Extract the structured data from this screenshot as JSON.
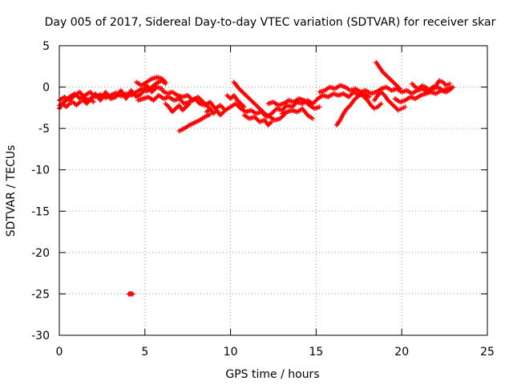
{
  "chart_data": {
    "type": "scatter",
    "title": "Day 005 of 2017, Sidereal Day-to-day VTEC variation (SDTVAR) for receiver skar",
    "xlabel": "GPS time / hours",
    "ylabel": "SDTVAR / TECUs",
    "xlim": [
      0,
      25
    ],
    "ylim": [
      -30,
      5
    ],
    "xticks": [
      0,
      5,
      10,
      15,
      20,
      25
    ],
    "yticks": [
      5,
      0,
      -5,
      -10,
      -15,
      -20,
      -25,
      -30
    ],
    "grid": true,
    "marker": "+",
    "color": "#ff0000",
    "series": [
      {
        "name": "SDTVAR",
        "segments": [
          [
            [
              0.0,
              -2.2
            ],
            [
              0.3,
              -1.8
            ],
            [
              0.6,
              -1.2
            ],
            [
              0.9,
              -0.8
            ],
            [
              1.2,
              -1.4
            ],
            [
              1.5,
              -1.0
            ],
            [
              1.8,
              -0.6
            ],
            [
              2.1,
              -1.2
            ],
            [
              2.4,
              -0.9
            ],
            [
              2.7,
              -1.3
            ],
            [
              3.0,
              -1.0
            ],
            [
              3.3,
              -0.7
            ],
            [
              3.6,
              -1.1
            ],
            [
              3.9,
              -0.8
            ],
            [
              4.2,
              -1.0
            ],
            [
              4.5,
              -0.6
            ],
            [
              4.8,
              -0.2
            ],
            [
              5.1,
              -0.5
            ],
            [
              5.4,
              0.0
            ],
            [
              5.7,
              0.5
            ],
            [
              6.0,
              0.8
            ],
            [
              6.2,
              0.4
            ]
          ],
          [
            [
              0.0,
              -1.6
            ],
            [
              0.3,
              -1.2
            ],
            [
              0.6,
              -1.6
            ],
            [
              0.9,
              -1.0
            ],
            [
              1.2,
              -0.6
            ],
            [
              1.5,
              -1.4
            ],
            [
              1.8,
              -1.6
            ],
            [
              2.1,
              -0.8
            ],
            [
              2.4,
              -1.6
            ],
            [
              2.7,
              -0.6
            ],
            [
              3.0,
              -1.4
            ],
            [
              3.3,
              -1.2
            ],
            [
              3.6,
              -0.4
            ],
            [
              3.9,
              -1.4
            ],
            [
              4.2,
              -0.4
            ],
            [
              4.5,
              -1.2
            ],
            [
              4.8,
              -0.8
            ],
            [
              5.1,
              0.2
            ],
            [
              5.4,
              -0.6
            ],
            [
              5.7,
              0.0
            ],
            [
              6.0,
              -0.2
            ]
          ],
          [
            [
              0.0,
              -2.6
            ],
            [
              0.2,
              -2.0
            ],
            [
              0.4,
              -2.4
            ],
            [
              0.6,
              -2.0
            ],
            [
              0.8,
              -1.8
            ],
            [
              1.0,
              -2.2
            ],
            [
              1.2,
              -1.8
            ],
            [
              1.4,
              -1.6
            ],
            [
              1.6,
              -2.0
            ],
            [
              1.8,
              -1.4
            ],
            [
              2.0,
              -1.8
            ]
          ],
          [
            [
              4.5,
              0.6
            ],
            [
              4.8,
              0.2
            ],
            [
              5.1,
              0.6
            ],
            [
              5.4,
              1.0
            ],
            [
              5.7,
              1.2
            ],
            [
              6.0,
              1.0
            ],
            [
              6.2,
              0.6
            ]
          ],
          [
            [
              4.6,
              -1.6
            ],
            [
              4.9,
              -1.4
            ],
            [
              5.2,
              -1.2
            ],
            [
              5.5,
              -1.6
            ],
            [
              5.8,
              -1.0
            ],
            [
              6.1,
              -1.4
            ],
            [
              6.4,
              -1.2
            ],
            [
              6.7,
              -1.6
            ],
            [
              7.0,
              -1.4
            ],
            [
              7.3,
              -2.0
            ],
            [
              7.6,
              -1.8
            ],
            [
              7.9,
              -1.4
            ],
            [
              8.2,
              -2.0
            ],
            [
              8.5,
              -2.2
            ],
            [
              8.8,
              -1.8
            ],
            [
              9.1,
              -2.6
            ],
            [
              9.4,
              -2.2
            ],
            [
              9.7,
              -2.8
            ],
            [
              10.0,
              -2.4
            ],
            [
              10.3,
              -2.0
            ],
            [
              10.6,
              -2.6
            ],
            [
              10.9,
              -3.0
            ],
            [
              11.2,
              -2.8
            ],
            [
              11.5,
              -3.2
            ],
            [
              11.8,
              -3.0
            ],
            [
              12.1,
              -3.6
            ],
            [
              12.4,
              -3.2
            ],
            [
              12.7,
              -2.6
            ],
            [
              13.0,
              -2.8
            ],
            [
              13.3,
              -2.2
            ],
            [
              13.6,
              -2.4
            ],
            [
              13.9,
              -1.8
            ],
            [
              14.2,
              -2.0
            ],
            [
              14.5,
              -1.6
            ],
            [
              14.8,
              -2.0
            ],
            [
              15.1,
              -1.4
            ],
            [
              15.4,
              -1.0
            ],
            [
              15.7,
              -1.2
            ],
            [
              16.0,
              -0.8
            ],
            [
              16.3,
              -1.0
            ],
            [
              16.6,
              -0.8
            ],
            [
              16.9,
              -1.2
            ],
            [
              17.2,
              -0.6
            ],
            [
              17.5,
              -1.0
            ],
            [
              17.8,
              -0.8
            ],
            [
              18.1,
              -1.2
            ]
          ],
          [
            [
              6.0,
              -0.4
            ],
            [
              6.3,
              -0.8
            ],
            [
              6.6,
              -0.6
            ],
            [
              6.9,
              -1.0
            ],
            [
              7.2,
              -1.2
            ],
            [
              7.5,
              -1.0
            ],
            [
              7.8,
              -1.6
            ],
            [
              8.1,
              -1.2
            ],
            [
              8.4,
              -1.8
            ],
            [
              8.7,
              -2.4
            ]
          ],
          [
            [
              6.2,
              -2.0
            ],
            [
              6.4,
              -2.4
            ],
            [
              6.6,
              -3.0
            ],
            [
              6.8,
              -2.6
            ],
            [
              7.0,
              -2.2
            ],
            [
              7.2,
              -2.8
            ],
            [
              7.4,
              -2.4
            ],
            [
              7.6,
              -2.0
            ]
          ],
          [
            [
              7.0,
              -5.3
            ],
            [
              7.3,
              -5.0
            ],
            [
              7.6,
              -4.6
            ],
            [
              7.9,
              -4.3
            ],
            [
              8.2,
              -4.0
            ],
            [
              8.5,
              -3.6
            ],
            [
              8.8,
              -3.3
            ]
          ],
          [
            [
              8.6,
              -3.0
            ],
            [
              8.8,
              -2.6
            ],
            [
              9.0,
              -3.2
            ],
            [
              9.2,
              -2.8
            ],
            [
              9.4,
              -3.4
            ],
            [
              9.6,
              -3.0
            ]
          ],
          [
            [
              9.8,
              -1.0
            ],
            [
              10.0,
              -1.4
            ],
            [
              10.2,
              -1.0
            ],
            [
              10.4,
              -1.6
            ],
            [
              10.6,
              -2.0
            ],
            [
              10.8,
              -2.4
            ]
          ],
          [
            [
              10.2,
              0.6
            ],
            [
              10.5,
              -0.2
            ],
            [
              10.8,
              -0.8
            ],
            [
              11.1,
              -1.4
            ],
            [
              11.4,
              -2.0
            ],
            [
              11.7,
              -2.6
            ],
            [
              12.0,
              -3.2
            ],
            [
              12.3,
              -3.6
            ],
            [
              12.6,
              -4.0
            ],
            [
              12.9,
              -3.8
            ],
            [
              13.2,
              -3.2
            ]
          ],
          [
            [
              10.8,
              -3.4
            ],
            [
              11.1,
              -3.8
            ],
            [
              11.4,
              -3.6
            ],
            [
              11.7,
              -4.2
            ],
            [
              12.0,
              -4.0
            ],
            [
              12.2,
              -4.6
            ],
            [
              12.4,
              -4.2
            ]
          ],
          [
            [
              12.2,
              -2.0
            ],
            [
              12.5,
              -1.8
            ],
            [
              12.8,
              -2.2
            ],
            [
              13.1,
              -2.0
            ],
            [
              13.4,
              -1.6
            ],
            [
              13.7,
              -1.8
            ],
            [
              14.0,
              -1.4
            ],
            [
              14.3,
              -1.6
            ],
            [
              14.6,
              -2.2
            ],
            [
              14.9,
              -2.6
            ],
            [
              15.2,
              -2.4
            ]
          ],
          [
            [
              13.0,
              -3.2
            ],
            [
              13.3,
              -3.0
            ],
            [
              13.6,
              -2.8
            ],
            [
              13.9,
              -3.0
            ],
            [
              14.2,
              -2.6
            ],
            [
              14.5,
              -3.4
            ],
            [
              14.8,
              -3.8
            ]
          ],
          [
            [
              15.2,
              -0.6
            ],
            [
              15.5,
              -0.4
            ],
            [
              15.8,
              0.0
            ],
            [
              16.1,
              -0.2
            ],
            [
              16.4,
              0.2
            ],
            [
              16.7,
              0.0
            ],
            [
              17.0,
              -0.4
            ],
            [
              17.3,
              -0.2
            ],
            [
              17.6,
              -0.6
            ],
            [
              17.9,
              -0.4
            ],
            [
              18.2,
              -0.8
            ],
            [
              18.5,
              -0.6
            ],
            [
              18.8,
              -0.2
            ],
            [
              19.1,
              0.0
            ],
            [
              19.4,
              -0.4
            ],
            [
              19.7,
              -0.2
            ],
            [
              20.0,
              -0.6
            ],
            [
              20.3,
              -0.4
            ],
            [
              20.6,
              -0.8
            ],
            [
              20.9,
              -0.4
            ],
            [
              21.2,
              -0.2
            ],
            [
              21.5,
              -0.6
            ],
            [
              21.8,
              -0.2
            ],
            [
              22.1,
              0.0
            ],
            [
              22.4,
              -0.4
            ],
            [
              22.7,
              -0.2
            ],
            [
              23.0,
              0.0
            ]
          ],
          [
            [
              16.2,
              -4.6
            ],
            [
              16.4,
              -4.0
            ],
            [
              16.6,
              -3.2
            ],
            [
              16.8,
              -2.6
            ],
            [
              17.0,
              -2.2
            ],
            [
              17.2,
              -1.6
            ],
            [
              17.4,
              -1.2
            ],
            [
              17.6,
              -0.8
            ],
            [
              17.8,
              -1.2
            ],
            [
              18.0,
              -1.6
            ],
            [
              18.2,
              -2.2
            ],
            [
              18.4,
              -2.6
            ],
            [
              18.6,
              -2.4
            ],
            [
              18.8,
              -2.0
            ]
          ],
          [
            [
              18.4,
              -1.6
            ],
            [
              18.6,
              -1.0
            ],
            [
              18.8,
              -0.6
            ],
            [
              19.0,
              -1.0
            ],
            [
              19.2,
              -1.6
            ],
            [
              19.4,
              -2.0
            ],
            [
              19.6,
              -2.4
            ],
            [
              19.8,
              -2.8
            ],
            [
              20.0,
              -2.6
            ],
            [
              20.2,
              -2.4
            ]
          ],
          [
            [
              18.5,
              3.0
            ],
            [
              18.7,
              2.4
            ],
            [
              18.9,
              1.8
            ],
            [
              19.1,
              1.4
            ],
            [
              19.3,
              1.0
            ],
            [
              19.5,
              0.6
            ],
            [
              19.7,
              0.2
            ],
            [
              19.9,
              -0.2
            ]
          ],
          [
            [
              19.6,
              -1.4
            ],
            [
              19.9,
              -1.8
            ],
            [
              20.2,
              -1.6
            ],
            [
              20.5,
              -1.2
            ],
            [
              20.8,
              -1.4
            ],
            [
              21.1,
              -1.0
            ],
            [
              21.4,
              -0.8
            ],
            [
              21.7,
              -0.6
            ],
            [
              22.0,
              -0.8
            ],
            [
              22.3,
              -0.4
            ],
            [
              22.6,
              -0.6
            ],
            [
              22.9,
              -0.2
            ]
          ],
          [
            [
              20.6,
              0.4
            ],
            [
              20.8,
              0.0
            ],
            [
              21.0,
              -0.2
            ],
            [
              21.2,
              0.2
            ],
            [
              21.4,
              0.0
            ],
            [
              21.6,
              -0.4
            ],
            [
              21.8,
              0.0
            ],
            [
              22.0,
              0.2
            ],
            [
              22.2,
              0.8
            ],
            [
              22.4,
              0.6
            ],
            [
              22.6,
              0.2
            ],
            [
              22.8,
              0.4
            ]
          ],
          [
            [
              4.05,
              -25.0
            ],
            [
              4.1,
              -25.05
            ],
            [
              4.15,
              -24.95
            ],
            [
              4.2,
              -25.0
            ],
            [
              4.25,
              -25.05
            ],
            [
              4.3,
              -25.0
            ]
          ]
        ]
      }
    ]
  }
}
